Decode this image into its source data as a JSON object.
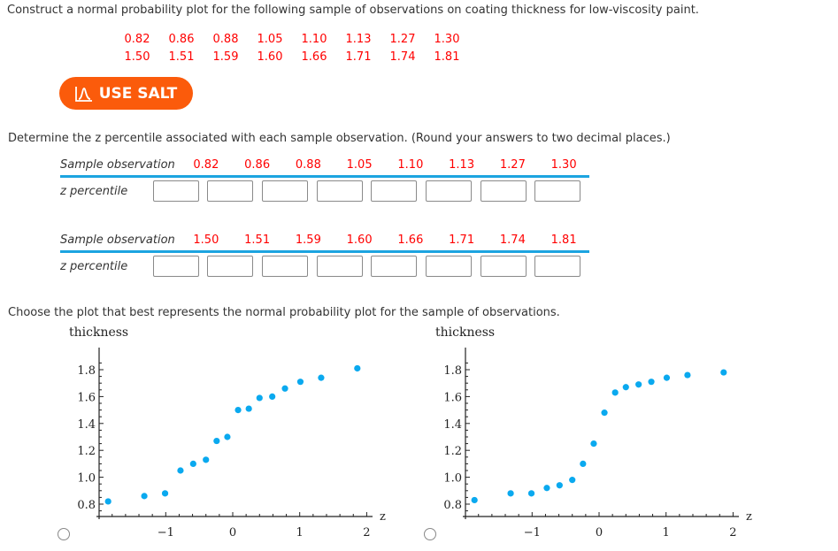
{
  "prompt": "Construct a normal probability plot for the following sample of observations on coating thickness for low-viscosity paint.",
  "samples_row1": [
    "0.82",
    "0.86",
    "0.88",
    "1.05",
    "1.10",
    "1.13",
    "1.27",
    "1.30"
  ],
  "samples_row2": [
    "1.50",
    "1.51",
    "1.59",
    "1.60",
    "1.66",
    "1.71",
    "1.74",
    "1.81"
  ],
  "salt_button": {
    "label": "USE SALT",
    "color": "#fb5b0b"
  },
  "determine_text": "Determine the z percentile associated with each sample observation. (Round your answers to two decimal places.)",
  "table1": {
    "header_label": "Sample observation",
    "values": [
      "0.82",
      "0.86",
      "0.88",
      "1.05",
      "1.10",
      "1.13",
      "1.27",
      "1.30"
    ],
    "row_label": "z percentile",
    "inputs": [
      "",
      "",
      "",
      "",
      "",
      "",
      "",
      ""
    ]
  },
  "table2": {
    "header_label": "Sample observation",
    "values": [
      "1.50",
      "1.51",
      "1.59",
      "1.60",
      "1.66",
      "1.71",
      "1.74",
      "1.81"
    ],
    "row_label": "z percentile",
    "inputs": [
      "",
      "",
      "",
      "",
      "",
      "",
      "",
      ""
    ]
  },
  "choose_text": "Choose the plot that best represents the normal probability plot for the sample of observations.",
  "colors": {
    "accent_line": "#1ca4e0",
    "point": "#0aa9ef",
    "sample_text": "#ff0000"
  },
  "chart_data": [
    {
      "type": "scatter",
      "title": "thickness",
      "xlabel": "z",
      "ylabel": "thickness",
      "x_ticks": [
        "-1",
        "0",
        "1",
        "2"
      ],
      "y_ticks": [
        "0.8",
        "1.0",
        "1.2",
        "1.4",
        "1.6",
        "1.8"
      ],
      "xlim": [
        -2.0,
        2.05
      ],
      "ylim": [
        0.71,
        1.92
      ],
      "x": [
        -1.86,
        -1.32,
        -1.01,
        -0.78,
        -0.59,
        -0.4,
        -0.24,
        -0.08,
        0.08,
        0.24,
        0.4,
        0.59,
        0.78,
        1.01,
        1.32,
        1.86
      ],
      "y": [
        0.82,
        0.86,
        0.88,
        1.05,
        1.1,
        1.13,
        1.27,
        1.3,
        1.5,
        1.51,
        1.59,
        1.6,
        1.66,
        1.71,
        1.74,
        1.81
      ]
    },
    {
      "type": "scatter",
      "title": "thickness",
      "xlabel": "z",
      "ylabel": "thickness",
      "x_ticks": [
        "-1",
        "0",
        "1",
        "2"
      ],
      "y_ticks": [
        "0.8",
        "1.0",
        "1.2",
        "1.4",
        "1.6",
        "1.8"
      ],
      "xlim": [
        -2.0,
        2.05
      ],
      "ylim": [
        0.71,
        1.92
      ],
      "x": [
        -1.86,
        -1.32,
        -1.01,
        -0.78,
        -0.59,
        -0.4,
        -0.24,
        -0.08,
        0.08,
        0.24,
        0.4,
        0.59,
        0.78,
        1.01,
        1.32,
        1.86
      ],
      "y": [
        0.83,
        0.88,
        0.88,
        0.92,
        0.94,
        0.98,
        1.1,
        1.25,
        1.48,
        1.63,
        1.67,
        1.69,
        1.71,
        1.74,
        1.76,
        1.78
      ]
    }
  ]
}
